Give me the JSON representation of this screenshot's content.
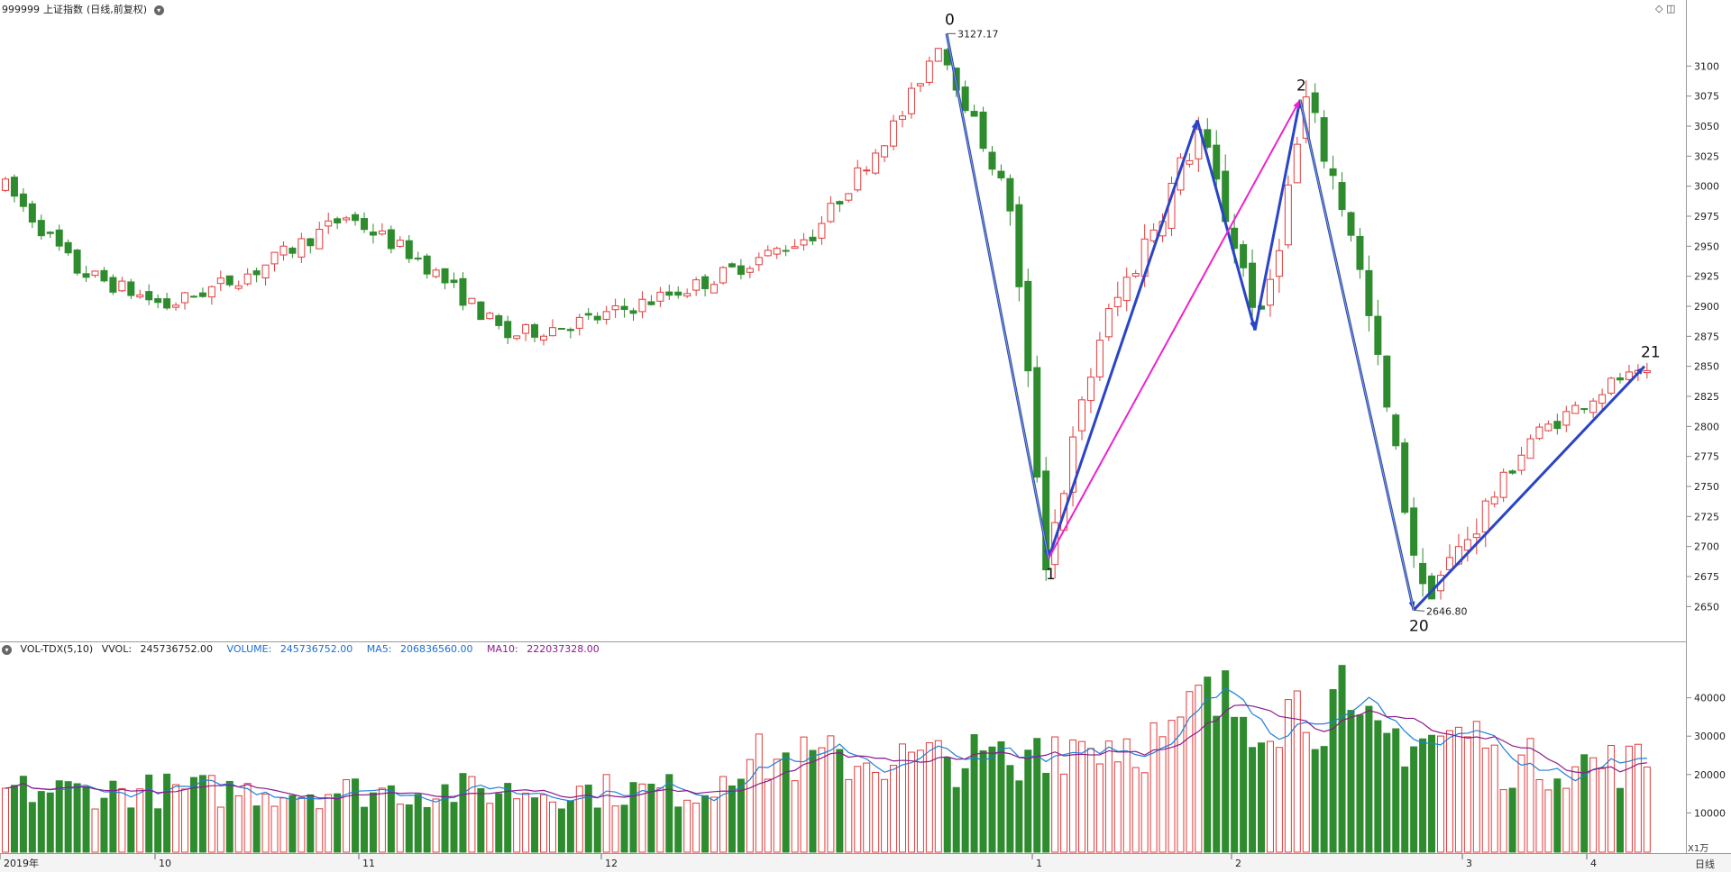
{
  "header": {
    "code": "999999",
    "name": "上证指数",
    "mode": "(日线,前复权)"
  },
  "vol_header": {
    "name": "VOL-TDX(5,10)",
    "vvol_label": "VVOL:",
    "vvol_value": "245736752.00",
    "volume_label": "VOLUME:",
    "volume_value": "245736752.00",
    "ma5_label": "MA5:",
    "ma5_value": "206836560.00",
    "ma10_label": "MA10:",
    "ma10_value": "222037328.00"
  },
  "colors": {
    "up": "#e23b3b",
    "down": "#2e8b2e",
    "wave_blue": "#2a44c8",
    "wave_magenta": "#ee22cc",
    "ma5": "#1f7fd6",
    "ma10": "#8b1b8b",
    "vol_header_blue": "#1a6fd0",
    "vol_header_purple": "#8b1b8b"
  },
  "chart_data": [
    {
      "type": "candlestick",
      "title": "999999 上证指数(日线,前复权)",
      "y_ticks": [
        2650,
        2675,
        2700,
        2725,
        2750,
        2775,
        2800,
        2825,
        2850,
        2875,
        2900,
        2925,
        2950,
        2975,
        3000,
        3025,
        3050,
        3075,
        3100
      ],
      "ylim": [
        2630,
        3140
      ],
      "x_axis_labels": [
        "2019年",
        "10",
        "11",
        "12",
        "1",
        "2",
        "3",
        "4"
      ],
      "period_label": "日线",
      "annotations": [
        {
          "label": "0",
          "value": "3127.17"
        },
        {
          "label": "1"
        },
        {
          "label": "2"
        },
        {
          "label": "20",
          "value": "2646.80"
        },
        {
          "label": "21"
        }
      ]
    },
    {
      "type": "bar",
      "title": "VOL-TDX(5,10)",
      "y_ticks": [
        10000,
        20000,
        30000,
        40000
      ],
      "ylim": [
        0,
        50000
      ],
      "unit_label": "X1万",
      "series": [
        {
          "name": "VOLUME"
        },
        {
          "name": "MA5"
        },
        {
          "name": "MA10"
        }
      ]
    }
  ]
}
